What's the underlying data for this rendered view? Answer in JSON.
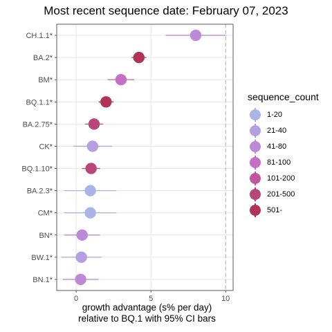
{
  "chart_data": {
    "type": "scatter",
    "title": "Most recent sequence date: February 07, 2023",
    "xlabel_line1": "growth advantage (s% per day)",
    "xlabel_line2": "relative to  BQ.1  with 95% CI bars",
    "ylabel": "",
    "xlim": [
      -1.3,
      10.5
    ],
    "x_ticks": [
      0,
      5,
      10
    ],
    "x_tick_labels": [
      "0",
      "5",
      "10"
    ],
    "reference_line_x": 10,
    "grid": true,
    "legend_position": "right",
    "legend_title": "sequence_count",
    "legend": [
      {
        "label": "1-20",
        "color": "#aab4e6"
      },
      {
        "label": "21-40",
        "color": "#b4a0e0"
      },
      {
        "label": "41-80",
        "color": "#be8ad8"
      },
      {
        "label": "81-100",
        "color": "#c46ec4"
      },
      {
        "label": "101-200",
        "color": "#c0579e"
      },
      {
        "label": "201-500",
        "color": "#b84779"
      },
      {
        "label": "501-",
        "color": "#b03456"
      }
    ],
    "categories": [
      "CH.1.1*",
      "BA.2*",
      "BM*",
      "BQ.1.1*",
      "BA.2.75*",
      "CK*",
      "BQ.1.10*",
      "BA.2.3*",
      "CM*",
      "BN*",
      "BW.1*",
      "BN.1*"
    ],
    "points": [
      {
        "label": "CH.1.1*",
        "x": 8.0,
        "lo": 6.0,
        "hi": 10.0,
        "group": "41-80"
      },
      {
        "label": "BA.2*",
        "x": 4.2,
        "lo": 3.7,
        "hi": 4.7,
        "group": "501-"
      },
      {
        "label": "BM*",
        "x": 3.0,
        "lo": 2.1,
        "hi": 3.9,
        "group": "81-100"
      },
      {
        "label": "BQ.1.1*",
        "x": 2.0,
        "lo": 1.5,
        "hi": 2.5,
        "group": "501-"
      },
      {
        "label": "BA.2.75*",
        "x": 1.2,
        "lo": 0.6,
        "hi": 1.8,
        "group": "201-500"
      },
      {
        "label": "CK*",
        "x": 1.1,
        "lo": -0.2,
        "hi": 2.4,
        "group": "21-40"
      },
      {
        "label": "BQ.1.10*",
        "x": 1.0,
        "lo": 0.4,
        "hi": 1.6,
        "group": "201-500"
      },
      {
        "label": "BA.2.3*",
        "x": 0.95,
        "lo": -0.8,
        "hi": 2.7,
        "group": "1-20"
      },
      {
        "label": "CM*",
        "x": 0.95,
        "lo": -0.8,
        "hi": 2.7,
        "group": "1-20"
      },
      {
        "label": "BN*",
        "x": 0.4,
        "lo": -0.8,
        "hi": 1.6,
        "group": "41-80"
      },
      {
        "label": "BW.1*",
        "x": 0.35,
        "lo": -1.0,
        "hi": 1.7,
        "group": "21-40"
      },
      {
        "label": "BN.1*",
        "x": 0.3,
        "lo": -0.9,
        "hi": 1.5,
        "group": "41-80"
      }
    ]
  }
}
